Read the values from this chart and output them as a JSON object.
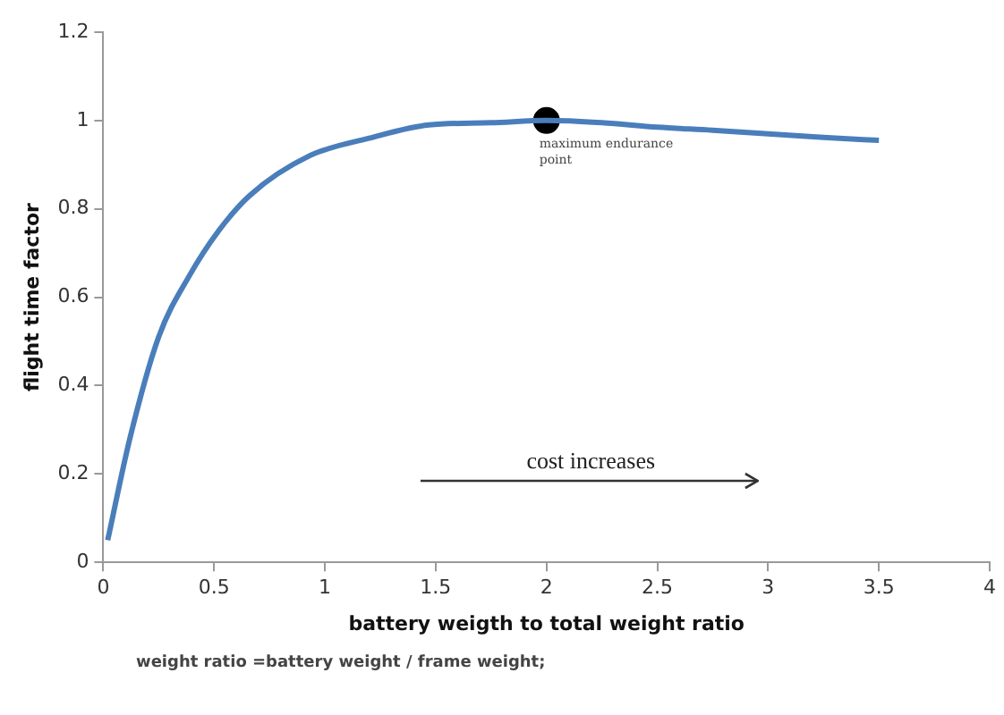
{
  "chart_data": {
    "type": "line",
    "xlabel": "battery weigth to total weight ratio",
    "ylabel": "flight time factor",
    "xlim": [
      0,
      4
    ],
    "xticks": [
      0,
      0.5,
      1,
      1.5,
      2,
      2.5,
      3,
      3.5,
      4
    ],
    "ylim": [
      0,
      1.2
    ],
    "yticks": [
      0,
      0.2,
      0.4,
      0.6,
      0.8,
      1,
      1.2
    ],
    "grid": false,
    "legend": false,
    "marker": "none",
    "line_style": "solid",
    "series": [
      {
        "color": "#4a7ebb",
        "x": [
          0.02,
          0.12,
          0.25,
          0.39,
          0.52,
          0.66,
          0.93,
          1.2,
          1.47,
          1.75,
          2,
          2.25,
          2.5,
          2.75,
          3,
          3.25,
          3.5
        ],
        "values": [
          0.05,
          0.28,
          0.51,
          0.65,
          0.75,
          0.83,
          0.92,
          0.96,
          0.99,
          0.995,
          1,
          0.995,
          0.985,
          0.978,
          0.97,
          0.962,
          0.955
        ]
      },
      {
        "type": "scatter",
        "color": "#000000",
        "marker": "circle",
        "x": [
          2
        ],
        "values": [
          1
        ]
      }
    ],
    "annotations": [
      {
        "text": "maximum endurance point",
        "x": 2,
        "y": 1
      },
      "cost increases",
      "weight ratio =battery weight / frame weight;"
    ]
  }
}
